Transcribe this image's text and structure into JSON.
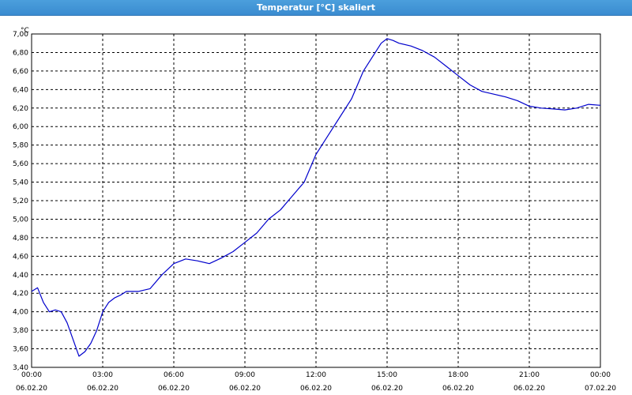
{
  "window": {
    "title": "Temperatur [°C] skaliert"
  },
  "colors": {
    "line": "#0000cc",
    "grid": "#000000",
    "background": "#ffffff",
    "titlebar": "#3f93d4"
  },
  "chart_data": {
    "type": "line",
    "title": "Temperatur [°C] skaliert",
    "ylabel": "°C",
    "ylim": [
      3.4,
      7.0
    ],
    "xlim_hours": [
      0,
      24
    ],
    "grid": true,
    "y_ticks": [
      "3,40",
      "3,60",
      "3,80",
      "4,00",
      "4,20",
      "4,40",
      "4,60",
      "4,80",
      "5,00",
      "5,20",
      "5,40",
      "5,60",
      "5,80",
      "6,00",
      "6,20",
      "6,40",
      "6,60",
      "6,80",
      "7,00"
    ],
    "x_ticks": [
      {
        "time": "00:00",
        "date": "06.02.20"
      },
      {
        "time": "03:00",
        "date": "06.02.20"
      },
      {
        "time": "06:00",
        "date": "06.02.20"
      },
      {
        "time": "09:00",
        "date": "06.02.20"
      },
      {
        "time": "12:00",
        "date": "06.02.20"
      },
      {
        "time": "15:00",
        "date": "06.02.20"
      },
      {
        "time": "18:00",
        "date": "06.02.20"
      },
      {
        "time": "21:00",
        "date": "06.02.20"
      },
      {
        "time": "00:00",
        "date": "07.02.20"
      }
    ],
    "series": [
      {
        "x": [
          0,
          0.25,
          0.5,
          0.75,
          1.0,
          1.25,
          1.5,
          1.75,
          2.0,
          2.25,
          2.5,
          2.75,
          3.0,
          3.25,
          3.5,
          3.75,
          4.0,
          4.5,
          5.0,
          5.5,
          6.0,
          6.5,
          7.0,
          7.5,
          8.0,
          8.5,
          9.0,
          9.5,
          10.0,
          10.5,
          11.0,
          11.5,
          12.0,
          12.5,
          13.0,
          13.5,
          14.0,
          14.5,
          14.75,
          15.0,
          15.25,
          15.5,
          16.0,
          16.5,
          17.0,
          17.5,
          18.0,
          18.5,
          19.0,
          19.5,
          20.0,
          20.5,
          21.0,
          21.5,
          22.0,
          22.5,
          23.0,
          23.5,
          24.0
        ],
        "y": [
          4.22,
          4.26,
          4.1,
          4.0,
          4.02,
          4.0,
          3.88,
          3.7,
          3.52,
          3.57,
          3.66,
          3.8,
          4.0,
          4.1,
          4.15,
          4.18,
          4.22,
          4.22,
          4.25,
          4.4,
          4.52,
          4.57,
          4.55,
          4.52,
          4.58,
          4.65,
          4.75,
          4.85,
          5.0,
          5.1,
          5.25,
          5.4,
          5.7,
          5.9,
          6.1,
          6.3,
          6.6,
          6.8,
          6.9,
          6.95,
          6.93,
          6.9,
          6.87,
          6.82,
          6.75,
          6.65,
          6.55,
          6.45,
          6.38,
          6.35,
          6.32,
          6.28,
          6.22,
          6.2,
          6.19,
          6.18,
          6.2,
          6.24,
          6.23
        ]
      }
    ]
  }
}
